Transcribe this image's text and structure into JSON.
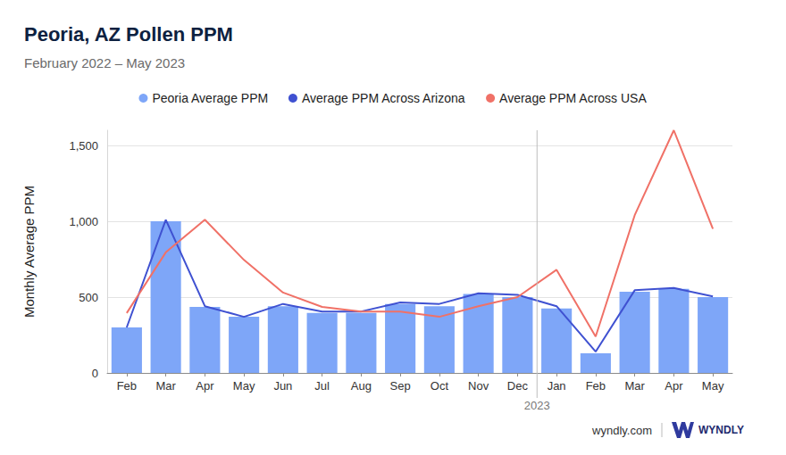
{
  "chart_data": {
    "type": "bar",
    "title": "Peoria, AZ Pollen PPM",
    "subtitle": "February 2022 – May 2023",
    "y_label": "Monthly Average PPM",
    "categories": [
      "Feb",
      "Mar",
      "Apr",
      "May",
      "Jun",
      "Jul",
      "Aug",
      "Sep",
      "Oct",
      "Nov",
      "Dec",
      "Jan",
      "Feb",
      "Mar",
      "Apr",
      "May"
    ],
    "series": [
      {
        "name": "Peoria Average PPM",
        "type": "bar",
        "color": "#7ea6f8",
        "values": [
          300,
          1000,
          435,
          370,
          440,
          395,
          395,
          455,
          440,
          520,
          500,
          425,
          130,
          535,
          555,
          500
        ]
      },
      {
        "name": "Average PPM Across Arizona",
        "type": "line",
        "color": "#3f51d1",
        "marker": "none",
        "line_style": "solid",
        "values": [
          300,
          1010,
          440,
          370,
          455,
          405,
          405,
          465,
          455,
          525,
          515,
          440,
          140,
          545,
          560,
          505
        ]
      },
      {
        "name": "Average PPM Across USA",
        "type": "line",
        "color": "#f07167",
        "marker": "none",
        "line_style": "solid",
        "values": [
          395,
          795,
          1010,
          745,
          530,
          435,
          405,
          405,
          370,
          440,
          500,
          680,
          240,
          1040,
          1600,
          950
        ]
      }
    ],
    "ylim": [
      0,
      1600
    ],
    "yticks": [
      0,
      500,
      {
        "value": 1000,
        "label": "1,000"
      },
      {
        "value": 1500,
        "label": "1,500"
      }
    ],
    "grid": true,
    "legend": "top",
    "annotations": [
      {
        "text": "2023",
        "at": "Jan"
      }
    ],
    "source": "wyndly.com",
    "logo": "WYNDLY"
  }
}
